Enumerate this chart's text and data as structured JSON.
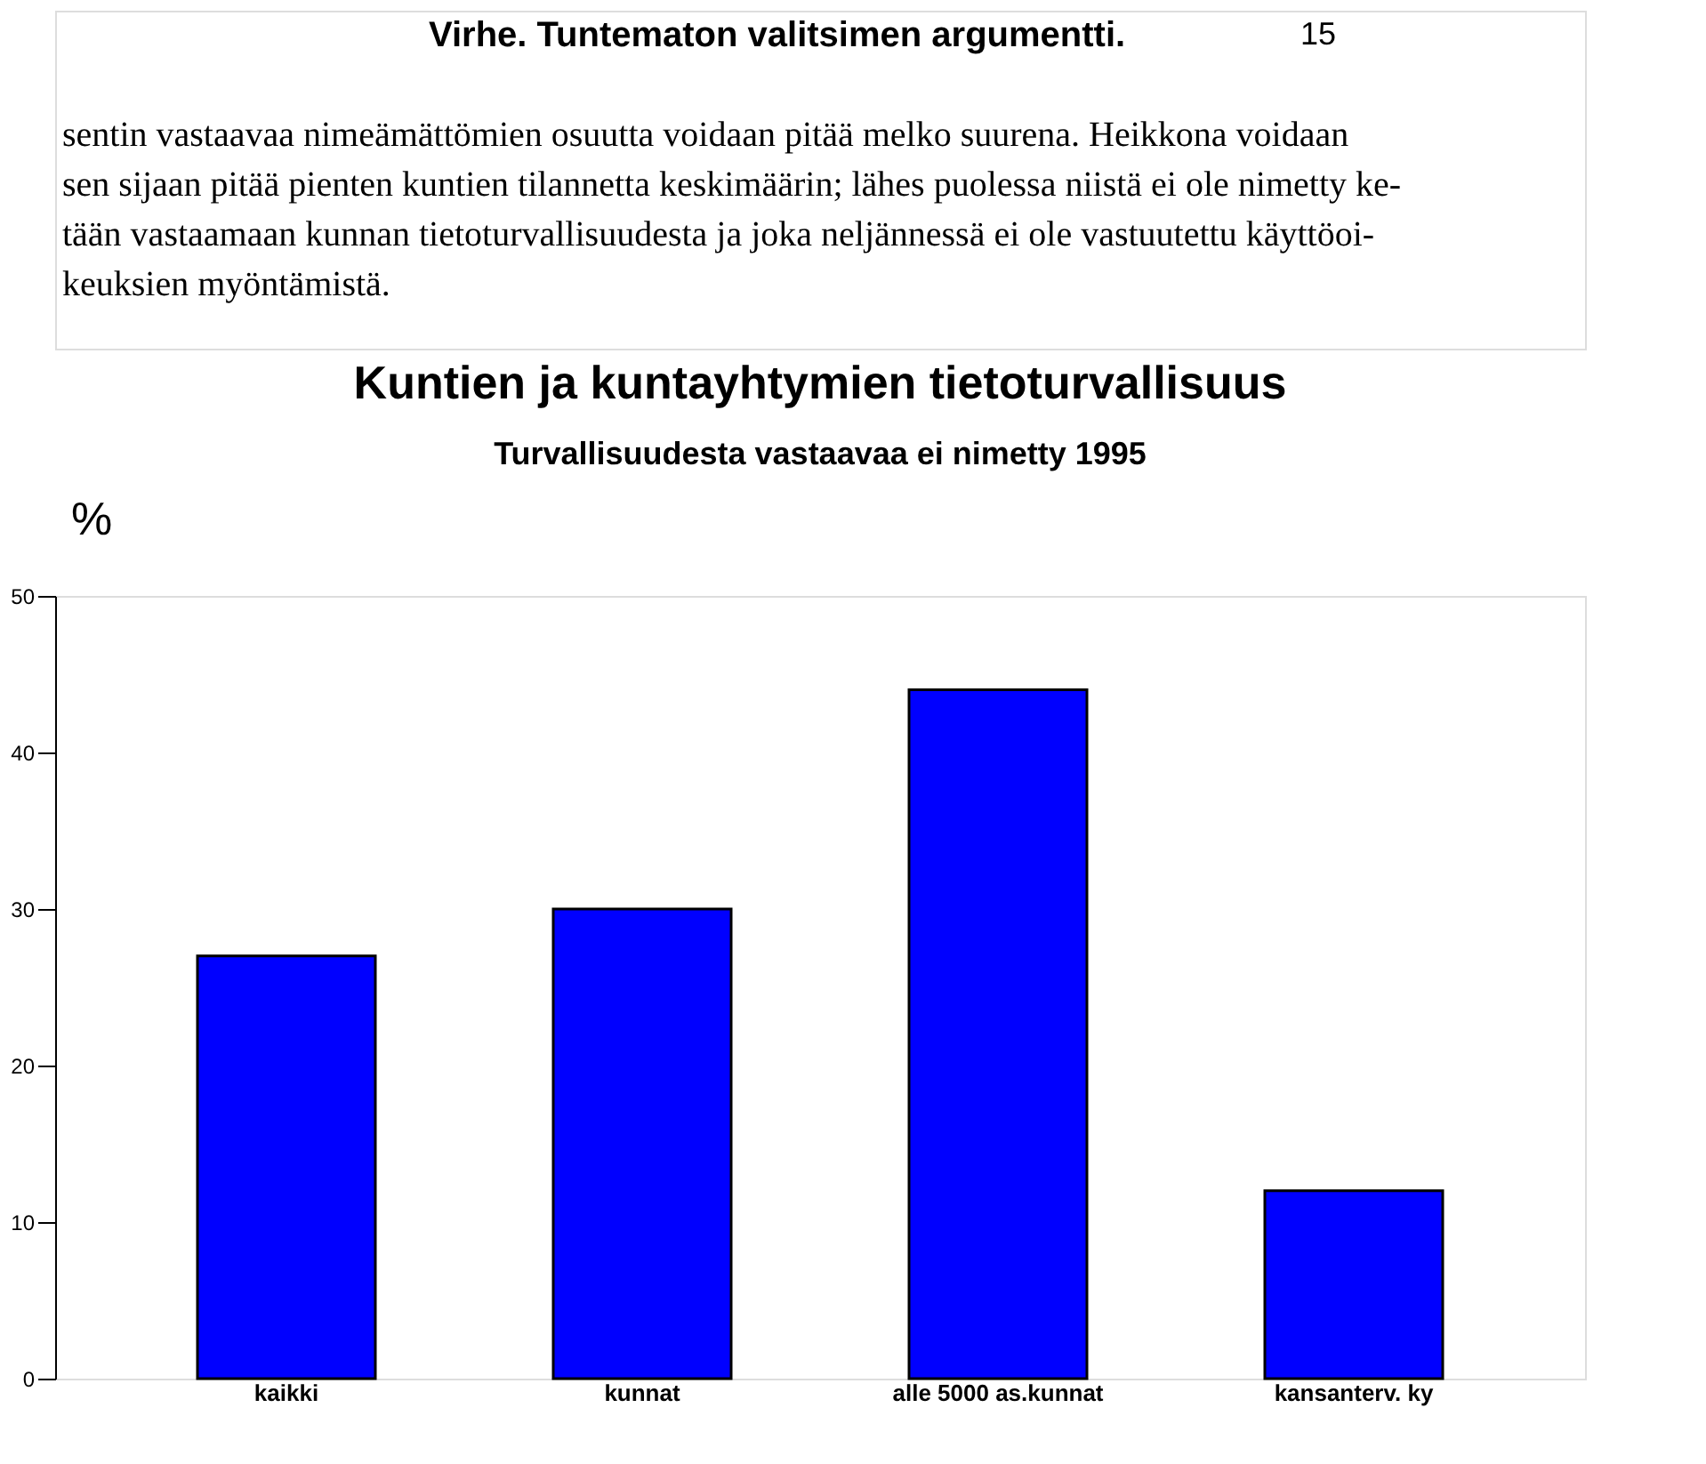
{
  "chart_data": {
    "type": "bar",
    "title": "Kuntien ja kuntayhtymien tietoturvallisuus",
    "subtitle": "Turvallisuudesta vastaavaa ei nimetty 1995",
    "ylabel": "%",
    "categories": [
      "kaikki",
      "kunnat",
      "alle 5000 as.kunnat",
      "kansanterv. ky"
    ],
    "values": [
      27,
      30,
      44,
      12
    ],
    "color": "#0000ff",
    "ylim": [
      0,
      50
    ],
    "yticks": [
      0,
      10,
      20,
      30,
      40,
      50
    ],
    "grid": false,
    "annotations": [
      "Virhe. Tuntematon valitsimen argumentti.",
      "15",
      "sentin vastaavaa nimeämättömien osuutta voidaan pitää melko suurena. Heikkona voidaan",
      "sen sijaan pitää pienten kuntien tilannetta keskimäärin; lähes puolessa niistä ei ole nimetty ke-",
      "tään vastaamaan kunnan tietoturvallisuudesta ja joka neljännessä ei ole vastuutettu käyttöoi-",
      "keuksien myöntämistä."
    ]
  }
}
